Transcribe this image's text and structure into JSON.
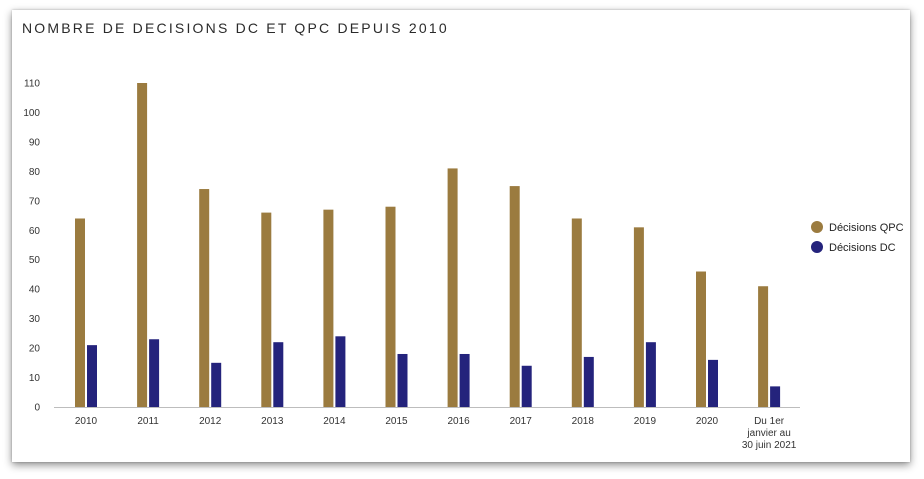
{
  "chart_data": {
    "type": "bar",
    "title": "NOMBRE DE DECISIONS DC ET QPC DEPUIS 2010",
    "xlabel": "",
    "ylabel": "",
    "ylim": [
      0,
      110
    ],
    "yticks": [
      0,
      10,
      20,
      30,
      40,
      50,
      60,
      70,
      80,
      90,
      100,
      110
    ],
    "grid": false,
    "legend_position": "right",
    "categories": [
      "2010",
      "2011",
      "2012",
      "2013",
      "2014",
      "2015",
      "2016",
      "2017",
      "2018",
      "2019",
      "2020",
      "Du 1er janvier au 30 juin 2021"
    ],
    "category_label_lines": [
      [
        "2010"
      ],
      [
        "2011"
      ],
      [
        "2012"
      ],
      [
        "2013"
      ],
      [
        "2014"
      ],
      [
        "2015"
      ],
      [
        "2016"
      ],
      [
        "2017"
      ],
      [
        "2018"
      ],
      [
        "2019"
      ],
      [
        "2020"
      ],
      [
        "Du 1er",
        "janvier au",
        "30 juin 2021"
      ]
    ],
    "series": [
      {
        "name": "Décisions QPC",
        "color": "#9b7b3f",
        "values": [
          64,
          110,
          74,
          66,
          67,
          68,
          81,
          75,
          64,
          61,
          46,
          41
        ]
      },
      {
        "name": "Décisions DC",
        "color": "#24237c",
        "values": [
          21,
          23,
          15,
          22,
          24,
          18,
          18,
          14,
          17,
          22,
          16,
          7
        ]
      }
    ]
  }
}
